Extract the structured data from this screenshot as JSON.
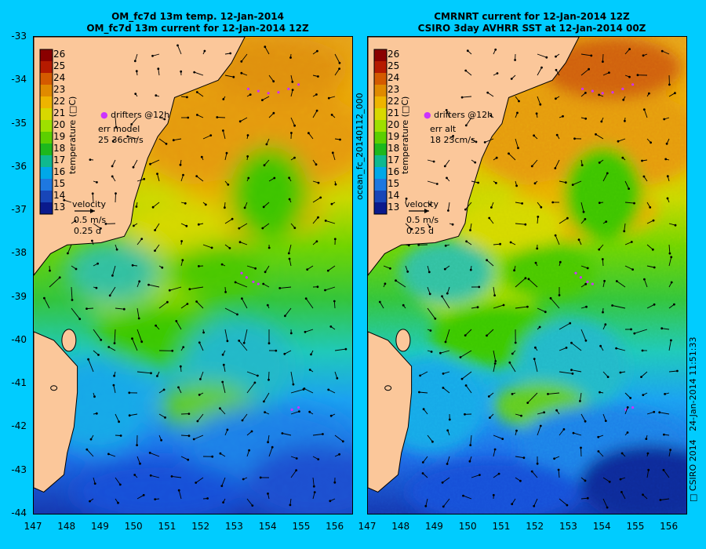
{
  "left_panel": {
    "title_line1": "OM_fc7d 13m temp. 12-Jan-2014",
    "title_line2": "OM_fc7d 13m current for 12-Jan-2014 12Z",
    "err_label": "err model",
    "err_value": "25 36cm/s"
  },
  "right_panel": {
    "title_line1": "CMRNRT current for 12-Jan-2014 12Z",
    "title_line2": "CSIRO 3day AVHRR SST at 12-Jan-2014 00Z",
    "err_label": "err alt",
    "err_value": "18 23cm/s",
    "product_id": "ocean_fc_20140112_000"
  },
  "legend": {
    "drifters": "drifters @12h",
    "velocity_title": "velocity",
    "velocity_scale": "0.5 m/s",
    "velocity_time": "0.25 d",
    "colorbar_label": "temperature (□C)",
    "colorbar_ticks": [
      "26",
      "25",
      "24",
      "23",
      "22",
      "21",
      "20",
      "19",
      "18",
      "17",
      "16",
      "15",
      "14",
      "13"
    ],
    "colorbar_colors": [
      "#8a0000",
      "#b51a00",
      "#d45a00",
      "#e08a00",
      "#eeb400",
      "#d8d800",
      "#9ee000",
      "#5ccf00",
      "#1db81d",
      "#0fb98f",
      "#00a8e8",
      "#1e78e0",
      "#1846b8",
      "#0a1a8c"
    ]
  },
  "axes": {
    "y_ticks": [
      "-33",
      "-34",
      "-35",
      "-36",
      "-37",
      "-38",
      "-39",
      "-40",
      "-41",
      "-42",
      "-43",
      "-44"
    ],
    "x_ticks": [
      "147",
      "148",
      "149",
      "150",
      "151",
      "152",
      "153",
      "154",
      "155",
      "156"
    ]
  },
  "footer": {
    "copyright": "□ CSIRO 2014",
    "timestamp": "24-Jan-2014 11:51:33"
  },
  "colors": {
    "background": "#00ccff",
    "land": "#fbc79a",
    "drifter": "#cc33ff"
  }
}
